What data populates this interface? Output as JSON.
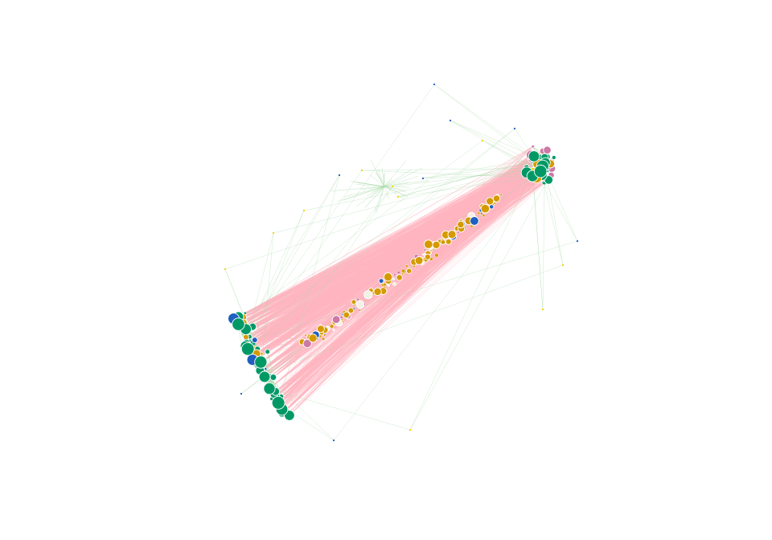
{
  "graph": {
    "type": "network-diagram",
    "labels_visible": false,
    "background": "#ffffff",
    "palette": {
      "node_green": "#009966",
      "node_orange": "#d69a00",
      "node_pink": "#cc79a7",
      "node_yellow": "#f0d000",
      "node_blue": "#1f5fbf",
      "edge_pink": "#ffb6c1",
      "edge_green": "#a8d8a8",
      "node_stroke": "#ffffff"
    },
    "clusters": [
      {
        "name": "upper-right-cluster",
        "dominant_color": "node_green",
        "secondary_color": "node_pink"
      },
      {
        "name": "lower-left-cluster",
        "dominant_color": "node_green"
      },
      {
        "name": "diagonal-band",
        "dominant_color": "node_orange"
      }
    ]
  }
}
